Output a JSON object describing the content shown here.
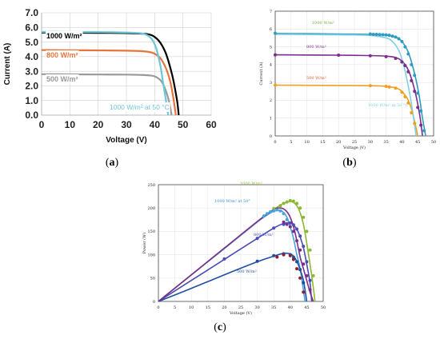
{
  "captions": {
    "a": "a",
    "b": "b",
    "c": "c"
  },
  "chart_data": [
    {
      "id": "a",
      "type": "line",
      "xlabel": "Voltage (V)",
      "ylabel": "Current (A)",
      "xlim": [
        0,
        60
      ],
      "ylim": [
        0,
        7
      ],
      "xticks": [
        "0",
        "10",
        "20",
        "30",
        "40",
        "50",
        "60"
      ],
      "yticks": [
        "0.0",
        "1.0",
        "2.0",
        "3.0",
        "4.0",
        "5.0",
        "6.0",
        "7.0"
      ],
      "grid": true,
      "series": [
        {
          "name": "1000 W/m²",
          "color": "#000000",
          "isc": 5.65,
          "voc": 48.5,
          "knee": 38,
          "sharp": 9,
          "x": [
            0,
            10,
            20,
            30,
            35,
            38,
            40,
            42,
            44,
            46,
            47,
            48,
            48.5
          ],
          "y": [
            5.65,
            5.64,
            5.63,
            5.61,
            5.58,
            5.52,
            5.35,
            4.95,
            4.2,
            2.9,
            2.0,
            0.9,
            0
          ]
        },
        {
          "name": "800 W/m²",
          "color": "#e8743b",
          "isc": 4.45,
          "x": [
            0,
            10,
            20,
            30,
            35,
            38,
            40,
            42,
            44,
            45.5,
            46.5,
            47.5
          ],
          "y": [
            4.45,
            4.44,
            4.43,
            4.41,
            4.38,
            4.32,
            4.2,
            3.9,
            3.2,
            2.3,
            1.3,
            0
          ]
        },
        {
          "name": "500 W/m²",
          "color": "#9a9a9a",
          "isc": 2.8,
          "x": [
            0,
            10,
            20,
            30,
            35,
            38,
            40,
            42,
            43.5,
            45,
            46
          ],
          "y": [
            2.8,
            2.79,
            2.78,
            2.77,
            2.75,
            2.72,
            2.65,
            2.4,
            1.9,
            1.0,
            0
          ]
        },
        {
          "name": "1000 W/m² at 50 °C",
          "color": "#6ec6d9",
          "isc": 5.7,
          "x": [
            0,
            10,
            20,
            30,
            35,
            37,
            39,
            40.5,
            42,
            43,
            44,
            44.8
          ],
          "y": [
            5.7,
            5.69,
            5.68,
            5.65,
            5.6,
            5.5,
            5.2,
            4.6,
            3.4,
            2.2,
            1.0,
            0
          ]
        }
      ]
    },
    {
      "id": "b",
      "type": "line",
      "xlabel": "Voltage (V)",
      "ylabel": "Current (A)",
      "xlim": [
        0,
        50
      ],
      "ylim": [
        0,
        7
      ],
      "xticks": [
        "0",
        "5",
        "10",
        "15",
        "20",
        "25",
        "30",
        "35",
        "40",
        "45",
        "50"
      ],
      "yticks": [
        "0",
        "1",
        "2",
        "3",
        "4",
        "5",
        "6",
        "7"
      ],
      "grid": true,
      "series": [
        {
          "name": "1000 W/m²",
          "color": "#2f9cbf",
          "label_color": "#6fb03a",
          "x": [
            0,
            10,
            20,
            30,
            35,
            38,
            40,
            42,
            44,
            45.5,
            46.5,
            47.5
          ],
          "y": [
            5.75,
            5.74,
            5.72,
            5.7,
            5.65,
            5.55,
            5.3,
            4.7,
            3.5,
            2.2,
            1.0,
            0
          ],
          "points_x": [
            0,
            30,
            31,
            32,
            33,
            34,
            35,
            36,
            37,
            38,
            39,
            40,
            41,
            42,
            43,
            44,
            45,
            46,
            47
          ],
          "points_y": [
            5.76,
            5.72,
            5.7,
            5.7,
            5.69,
            5.68,
            5.67,
            5.65,
            5.6,
            5.55,
            5.45,
            5.3,
            5.0,
            4.6,
            4.0,
            3.4,
            2.4,
            1.4,
            0.3
          ]
        },
        {
          "name": "800 W/m²",
          "color": "#7b2d8b",
          "x": [
            0,
            10,
            20,
            30,
            35,
            38,
            40,
            42,
            44,
            45.5,
            46.5
          ],
          "y": [
            4.55,
            4.54,
            4.53,
            4.51,
            4.48,
            4.4,
            4.2,
            3.7,
            2.6,
            1.3,
            0
          ],
          "points_x": [
            0,
            20,
            30,
            35,
            38,
            40,
            41,
            42,
            43,
            44,
            45,
            46
          ],
          "points_y": [
            4.55,
            4.53,
            4.5,
            4.45,
            4.35,
            4.15,
            3.95,
            3.6,
            3.1,
            2.5,
            1.6,
            0.6
          ]
        },
        {
          "name": "500 W/m²",
          "color": "#f0a020",
          "label_color": "#e05a1e",
          "x": [
            0,
            10,
            20,
            30,
            35,
            38,
            40,
            42,
            43.5,
            45
          ],
          "y": [
            2.85,
            2.84,
            2.83,
            2.82,
            2.78,
            2.7,
            2.5,
            2.0,
            1.2,
            0
          ],
          "points_x": [
            0,
            30,
            35,
            36,
            38,
            40,
            41,
            42,
            43,
            44
          ],
          "points_y": [
            2.85,
            2.82,
            2.78,
            2.75,
            2.68,
            2.45,
            2.2,
            1.85,
            1.3,
            0.7
          ]
        },
        {
          "name": "1000 W/m² at 50 °C",
          "color": "#7fd0e6",
          "x": [
            0,
            10,
            20,
            30,
            35,
            37,
            39,
            40.5,
            42,
            43,
            44.5
          ],
          "y": [
            5.7,
            5.69,
            5.67,
            5.64,
            5.5,
            5.3,
            4.8,
            4.0,
            2.8,
            1.8,
            0
          ],
          "points_x": [],
          "points_y": []
        }
      ]
    },
    {
      "id": "c",
      "type": "line",
      "xlabel": "Voltage (V)",
      "ylabel": "Power (W)",
      "xlim": [
        0,
        50
      ],
      "ylim": [
        0,
        250
      ],
      "xticks": [
        "0",
        "5",
        "10",
        "15",
        "20",
        "25",
        "30",
        "35",
        "40",
        "45",
        "50"
      ],
      "yticks": [
        "0",
        "50",
        "100",
        "150",
        "200",
        "250"
      ],
      "grid": true,
      "series": [
        {
          "name": "1000 W/m²",
          "color": "#8bb832",
          "label_color": "#8bb832",
          "x": [
            0,
            10,
            20,
            30,
            35,
            38,
            40,
            41,
            42,
            43,
            44,
            45,
            46,
            47,
            47.5
          ],
          "y": [
            0,
            57,
            114,
            171,
            197,
            210,
            214,
            212,
            205,
            190,
            165,
            125,
            80,
            30,
            0
          ],
          "points_x": [
            35,
            37,
            38,
            39,
            40,
            41,
            42,
            43,
            44,
            45,
            46,
            47
          ],
          "points_y": [
            199,
            205,
            210,
            213,
            216,
            215,
            210,
            200,
            180,
            150,
            110,
            55
          ]
        },
        {
          "name": "1000 W/m² at 50°",
          "color": "#4aa3dc",
          "label_color": "#2f8fd0",
          "x": [
            0,
            10,
            20,
            30,
            33,
            35,
            37,
            38,
            39,
            40,
            41,
            42,
            43,
            44.5
          ],
          "y": [
            0,
            57,
            113,
            170,
            185,
            193,
            195,
            190,
            180,
            160,
            135,
            100,
            70,
            0
          ],
          "points_x": [
            32,
            33,
            34,
            35,
            36,
            37,
            38,
            39,
            40
          ],
          "points_y": [
            183,
            188,
            192,
            194,
            196,
            194,
            188,
            175,
            160
          ]
        },
        {
          "name": "800 W/m²",
          "color": "#4a4ab8",
          "label_color": "#4a4ab8",
          "x": [
            0,
            10,
            20,
            30,
            35,
            38,
            40,
            41,
            42,
            43,
            44,
            45,
            46,
            46.5
          ],
          "y": [
            0,
            45,
            90,
            135,
            157,
            167,
            168,
            163,
            155,
            138,
            115,
            80,
            40,
            0
          ],
          "points_x": [
            20,
            30,
            35,
            38,
            40,
            41,
            42,
            43,
            44,
            45,
            46
          ],
          "points_y": [
            91,
            135,
            157,
            165,
            168,
            164,
            155,
            140,
            118,
            85,
            45
          ]
        },
        {
          "name": "500 W/m²",
          "color": "#1f4fa0",
          "label_color": "#1f4fa0",
          "x": [
            0,
            10,
            20,
            30,
            35,
            38,
            40,
            41,
            42,
            43,
            44,
            45
          ],
          "y": [
            0,
            28,
            57,
            85,
            97,
            103,
            102,
            97,
            86,
            68,
            45,
            0
          ],
          "points_x": [
            30,
            35,
            38,
            40,
            41,
            42,
            43,
            44
          ],
          "points_y": [
            86,
            98,
            102,
            100,
            95,
            85,
            68,
            40
          ]
        },
        {
          "name": "",
          "color": "#7b2d8b",
          "x": [
            0,
            10,
            20,
            30,
            35,
            37,
            38,
            39,
            40,
            41,
            42,
            43,
            44,
            45,
            46,
            47
          ],
          "y": [
            0,
            57,
            114,
            171,
            197,
            200,
            198,
            192,
            180,
            160,
            130,
            95,
            70,
            45,
            20,
            0
          ],
          "points_x": [
            38,
            39,
            40,
            41,
            42,
            43,
            44,
            45,
            46
          ],
          "points_y": [
            170,
            165,
            160,
            150,
            130,
            110,
            80,
            55,
            25
          ]
        },
        {
          "name": "",
          "color": "#8b1f2a",
          "x": [],
          "y": [],
          "points_x": [
            36,
            38,
            40,
            41,
            42,
            43,
            44
          ],
          "points_y": [
            95,
            100,
            98,
            90,
            70,
            50,
            20
          ]
        }
      ]
    }
  ]
}
